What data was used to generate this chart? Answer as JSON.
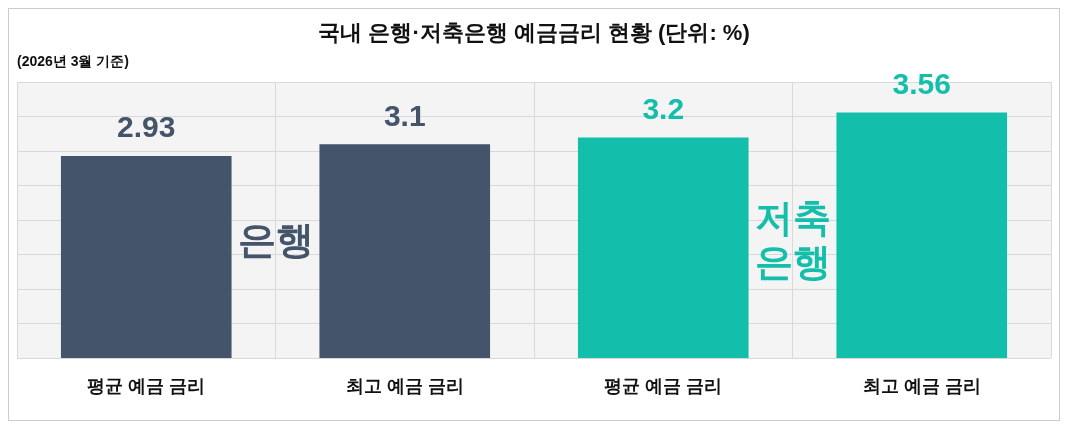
{
  "chart_data": {
    "type": "bar",
    "title": "국내 은행·저축은행 예금금리 현황 (단위: %)",
    "subtitle": "(2026년 3월 기준)",
    "categories": [
      "평균 예금 금리",
      "최고 예금 금리",
      "평균 예금 금리",
      "최고 예금 금리"
    ],
    "values": [
      2.93,
      3.1,
      3.2,
      3.56
    ],
    "colors": [
      "#44546a",
      "#44546a",
      "#13bfaa",
      "#13bfaa"
    ],
    "annotations": [
      "은행",
      "저축은행"
    ],
    "ylim": [
      0,
      4
    ],
    "yticks": [
      0,
      0.5,
      1,
      1.5,
      2,
      2.5,
      3,
      3.5,
      4
    ],
    "grid": true,
    "tick_labels": "x",
    "data_labels": true,
    "legend": false
  }
}
